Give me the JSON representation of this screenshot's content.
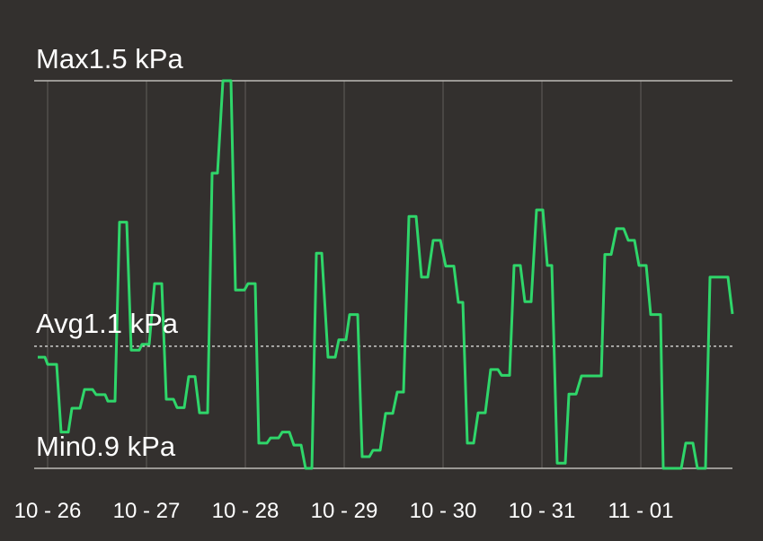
{
  "chart_data": {
    "type": "line",
    "color": "#2fd66a",
    "x": [
      -2.4,
      -0.65,
      0,
      2.18,
      3.27,
      5.02,
      5.89,
      7.85,
      8.95,
      10.91,
      11.78,
      13.96,
      14.62,
      16.36,
      17.45,
      19.2,
      20.29,
      22.25,
      22.91,
      24.65,
      25.96,
      27.71,
      28.8,
      30.55,
      31.42,
      33.16,
      34.25,
      35.78,
      36.87,
      38.84,
      39.93,
      41.24,
      42.55,
      44.51,
      45.6,
      47.78,
      48.65,
      50.4,
      51.27,
      53.24,
      54.11,
      56.07,
      56.95,
      58.69,
      59.78,
      61.53,
      62.62,
      64.15,
      65.24,
      66.55,
      68.07,
      69.82,
      70.69,
      72.44,
      73.31,
      75.27,
      76.36,
      78.11,
      78.98,
      80.73,
      82.04,
      83.78,
      84.87,
      86.4,
      87.71,
      89.45,
      90.76,
      92.29,
      93.6,
      95.35,
      96.65,
      98.62,
      99.71,
      100.8,
      101.89,
      103.42,
      104.51,
      106.25,
      107.56,
      109.31,
      110.18,
      112.15,
      113.24,
      114.76,
      115.85,
      117.38,
      118.69,
      120.22,
      121.31,
      122.4,
      123.71,
      125.67,
      126.55,
      128.29,
      129.6,
      134.4,
      135.27,
      136.8,
      138.11,
      139.85,
      140.95,
      142.47,
      143.56,
      145.31,
      146.4,
      148.8,
      149.45,
      153.82,
      154.91,
      156.65,
      157.75,
      159.71,
      160.8,
      165.16,
      166.25
    ],
    "values": [
      1.072,
      1.072,
      1.061,
      1.061,
      0.956,
      0.956,
      0.993,
      0.993,
      1.022,
      1.022,
      1.014,
      1.014,
      1.004,
      1.004,
      1.281,
      1.281,
      1.083,
      1.083,
      1.092,
      1.092,
      1.186,
      1.186,
      1.007,
      1.007,
      0.994,
      0.994,
      1.042,
      1.042,
      0.986,
      0.986,
      1.357,
      1.357,
      1.5,
      1.5,
      1.176,
      1.176,
      1.186,
      1.186,
      0.939,
      0.939,
      0.947,
      0.947,
      0.956,
      0.956,
      0.936,
      0.936,
      0.9,
      0.9,
      1.233,
      1.233,
      1.072,
      1.072,
      1.099,
      1.099,
      1.138,
      1.138,
      0.918,
      0.918,
      0.928,
      0.928,
      0.985,
      0.985,
      1.018,
      1.018,
      1.29,
      1.29,
      1.196,
      1.196,
      1.253,
      1.253,
      1.213,
      1.213,
      1.157,
      1.157,
      0.939,
      0.939,
      0.986,
      0.986,
      1.053,
      1.053,
      1.044,
      1.044,
      1.214,
      1.214,
      1.158,
      1.158,
      1.3,
      1.3,
      1.214,
      1.214,
      0.908,
      0.908,
      1.015,
      1.015,
      1.043,
      1.043,
      1.231,
      1.231,
      1.271,
      1.271,
      1.253,
      1.253,
      1.214,
      1.214,
      1.138,
      1.138,
      0.9,
      0.9,
      0.939,
      0.939,
      0.9,
      0.9,
      1.196,
      1.196,
      1.139
    ],
    "xlim": [
      -2.4,
      166.25
    ],
    "ylim": [
      0.9,
      1.5
    ],
    "xticks": [
      {
        "value": 0,
        "label": "10 - 26"
      },
      {
        "value": 24,
        "label": "10 - 27"
      },
      {
        "value": 48,
        "label": "10 - 28"
      },
      {
        "value": 72,
        "label": "10 - 29"
      },
      {
        "value": 96,
        "label": "10 - 30"
      },
      {
        "value": 120,
        "label": "10 - 31"
      },
      {
        "value": 144,
        "label": "11 - 01"
      }
    ],
    "grid": true,
    "reference_lines": [
      {
        "value": 1.5,
        "label": "Max1.5 kPa",
        "style": "solid"
      },
      {
        "value": 1.089,
        "label": "Avg1.1 kPa",
        "style": "dashed"
      },
      {
        "value": 0.9,
        "label": "Min0.9 kPa",
        "style": "solid"
      }
    ]
  }
}
